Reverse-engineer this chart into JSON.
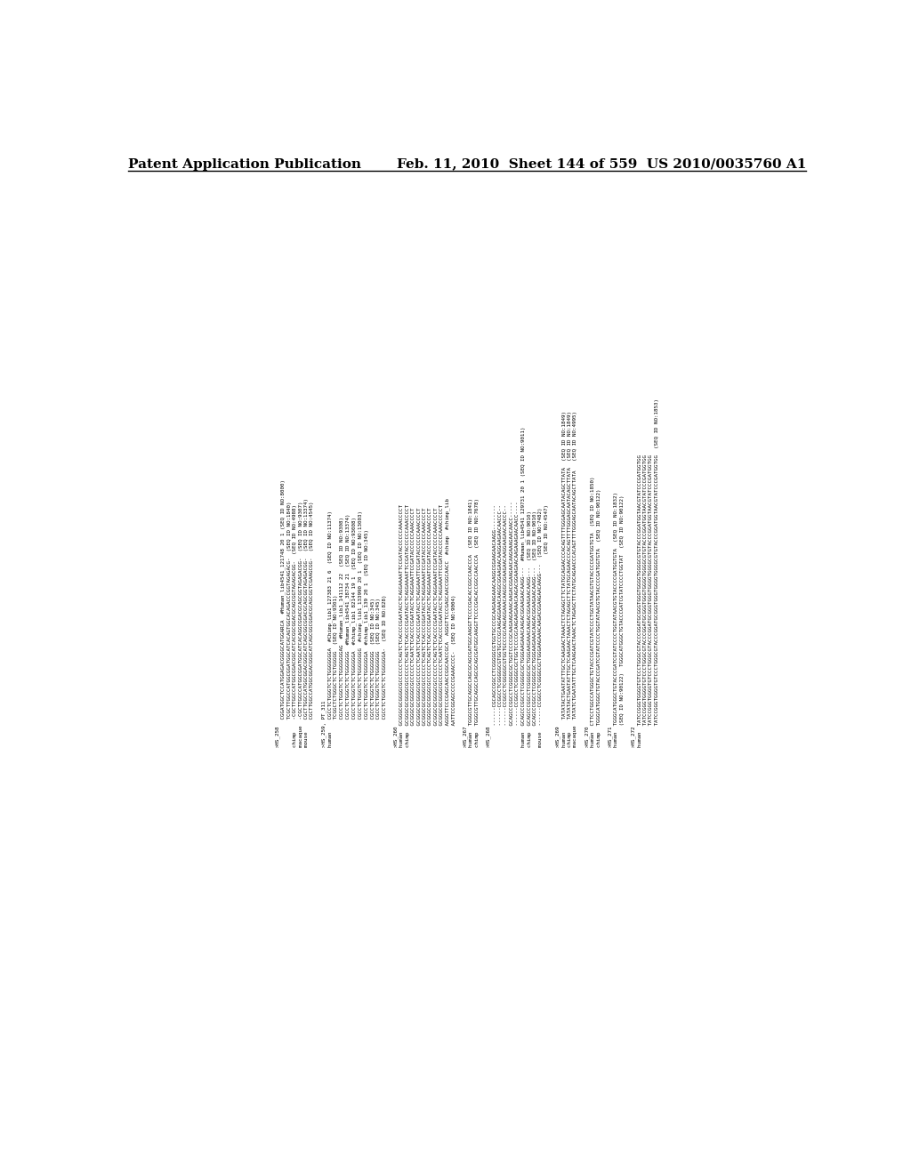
{
  "header_left": "Patent Application Publication",
  "header_right": "Feb. 11, 2010  Sheet 144 of 559  US 2010/0035760 A1",
  "background_color": "#ffffff",
  "text_color": "#000000",
  "header_font_size": 11,
  "body_font_size": 4.2,
  "content": [
    ">HS_258",
    "         CGGATGGCTCCATGGAGACGGGGCATGGARCA  #Human_lib4541_121748 20 1 (SEQ ID NO:8000)",
    "         TCGCTTGGCCATGGCGGATGGCATCACAGTGGCACAGACCCGGTAGAGACG-  (SEQ ID NO:1840)",
    "chimp    -CGCTTGGCCATGGCGGACGGCATCACGGCGGACGCAGCGGTAGAGACGG-  (SEQ ID NO:4988)",
    "macaque  -CGCTTGGCCATGGCGGATGGCATCACAGGCGGACGCAGCGGTAGAGACGG-  (SEQ ID NO:9307)",
    "mouse    CGCTTGGCCATGGCGGACGGGCATCAGCGGCGGACGCAGCGGTAGAGACGG-  (SEQ ID NO:13374)",
    "         CGCTTGGCCATGGCGGACGGGCATCAGCGGCGGACGCAGCGGTCGAAGCGG-  (SEQ ID NO:4545)",
    "",
    ">HS_259, PT_311",
    "human    CGCCTCTGGGTCTCTGGGGGGGA  #Chimp_lib1_127383 21 6  (SEQ ID NO:11374)",
    "         TCGGCTCTGGGCTCTGTGGGGG  (SEQ ID NO:9301)",
    "         CGCCTCTGGGTCTCTGGGGGGGAG  #Human_lib1_141112 22  (SEQ ID NO:9308)",
    "         CGCCTCTGGGTCTCTGGGGGGG  #Human_lib4541_38734 21  (SEQ ID NO:13374)",
    "         CGCCTCTGGGTCTCTGGGGGGA  #chimp_lib1 82144 19 1  (SEQ ID NO:93008)",
    "         CGCCTCTGGGTCTCTGGGGGGGG  #chimp_lib1_133990 20 1  (SEQ ID NO:13003)",
    "         CGCCTCTGGGTCTCTGGGGGGA  #chimp_lib1_139 20 1  (SEQ ID NO:345)",
    "         CGCCTCTGGGTCTCTGGGGGGG  (SEQ ID NO:345)",
    "         CGCCTCTGGGTCTCTGGGGGGG  (SEQ ID NO:345)",
    "         CGCCTCTGGGTCTCTGGGGGGA-  (SEQ ID NO:828)",
    "",
    ">HS_260",
    "human  GCGGGCGCGGGGCGCCCCCCTCAGTCTCACCCCGAATACCTCAGGAAAATTCCGATACCCCCCAAACCCCT",
    "chimp  GCGGGCGCGGGGCGCCCCCCTCAGTCTCACCCCGAATACCTCAGGAAAATTCCGATACCCCCCAAACCCCT",
    "       GCGGGCGCGGGGCGCCCCCCTCAATCTCACCCCGAATACCTCAGGAAATTCCGATACCCCCCAAACCCCT",
    "       GCGGGCGCGGGGCGCCCCCCTCAATCTCACCCCGAATACCTCAGGAAATTCCGATACCCCCCAAACCCCT",
    "       GCGGGCGCGGGGCGCCCCCCTCAGTCTCACCCCGGATACCTCAGGAAAATCCGATACCCCCCAAACCCCT",
    "       GCGGGCGCGGGGCGCCCCCCTCAGTCTCACCCCGAATACCTCAGGAAAATCCGATACCCCCCAAACCCCT",
    "       GCGGGCGCGGGGCGCCCCCCTCAGTCTCACCCCGAATACCTCAGGAAAATCCGATACCCCCCAAACCCCT",
    "       GCGGGCGCGGGGCGCCCCCCTCAATCTCACCCCGAATACCTCAGGAAATTCCGATACCCCCCAAACCCCCT",
    "       AGGGTTCCCGAGCAACCGGCAACCGCA  AGGGTTCCCGAGCAACCGGCAACC  #chimp  #chimp_lib",
    "       AATTCCGGAGCCCCCGAAACCCC-  (SEQ ID NO:9004)",
    "",
    ">HS_267",
    "human  TGGGCGTTGCAGGCCAGCGCAGCGATGGCAAGGTTCCCCGACACCGGCCAACCCA  (SEQ ID NO:1841)",
    "chimp  TGGGCGTTGCAGGCCAGCGCAGCGATGGCAAGGTTCCCCGACACCGGCCAACCCA  (SEQ ID NO:7678)",
    "",
    ">HS_268",
    "       ------CGCAGCCGGCCTCGGGGGCGTGGTGCCCGCAAGAAGAAACAAGGCGGAAGAACAAGG--------",
    "       ------CCGGCCTCGGGGGCGTGGTGCCCGCAAGAGGAAACAAGGCGGAAGAACAAGGAAGAACAACCC--",
    "       ------CCGGCCTCGGGGGCGTGGTGCCCGCAAGAGGAAACAAGGCGGAAGAACAAGGAAGAACAACCC--",
    "       GCAGCCCGGCCTCGGGGCGCTGGTCCCCGCAAGAAGAAACAAGACGGAAGAACAAGAAAGAACAACC-----",
    "       ------CCGGCCTCGGGGCGCTGGTCCCCGCAAGAAGAAACAAGACGGAAGAACAAGAAAGAACAACC----",
    "human  GCAGCCCGGCCTCGGGGCGCTGGGAAGAAACAAGACGGAAGAACAAGG---  #Human_lib4541 129731 20 1 (SEQ ID NO:9011)",
    "chimp  GCAGCCCGGCCTCGGGGCGCTGGGAAGAAACAAGACGGAAGAACAAGG---  (SEQ ID NO:9010)",
    "       GCAGCCCGGCCTCGGGGCGCTGGGAAGAAACAAGACGGAAGAACAAGG---  (SEQ ID NO:9010)",
    "mouse  ------CCGGCCTCGGGGCGCTGGGAAGAAACAAGACGGAAGAACAAGG---  (SEQ ID NO:7482)",
    "                                                              (SEQ ID NO:4547)",
    "",
    ">HS_269",
    "human    TATATACTGAATATTTGCTCAAGAACTAAACTCTAGAGCTTCTATGCAGAACCCACAGTTTTGGGAGCAATACAGCTTATA  (SEQ ID NO:1849)",
    "chimp    TATATACTGAATATTTGCTCAAGAACTAAACTCTAGAGCTTCTATGCAGAACCCACAGTTTTGGGAGCAATACAGCTTATA  (SEQ ID NO:1849)",
    "macaque  TATATCTGAATATTTGCTCAAGAACTAAACTCTAGAGCTTCTATGCAGAACCCACAGTTTTGGGAGCAATACAGCTTATA   (SEQ ID NO:4995)",
    "",
    ">HS_270",
    "human  CTTCCTGGCCATGGGCTGTACCCGATCGTATCCCCTGGTATAACGTGTACCCCGATGGTGTA  (SEQ ID NO:1850)",
    "chimp  TGGGCATGGGCTGTACCCGATCGTATCCCCTGGTATAACGTGTACCCCGATGGTGTA  (SEQ ID NO:90122)",
    "",
    ">HS_271",
    "human  TGGGCATGGGCTGTACCCGATCGTATCCCCTGGTATAACGTGTACCCCGATGGTGTA  (SEQ ID NO:1832)",
    "       (SEQ ID NO:90122)  TGGGCATGGGCTGTACCCGATCGTATCCCCTGGTAT  (SEQ ID NO:90122)",
    "",
    ">HS_272",
    "human  TATCCGGGTGGGGTGTCCCTGGGCGTACCCGGATGCGGGTGGGTGGGGTGGGGCGTGTACCCGGATGGTAACGTATCCCGATGGTGG",
    "       TATCCGGGTGGGGTGTCCCTGGGCGTACCCGGATGCGGGTGGGTGGGGTGGGGCGTGTACCCGGATGGTAACGTATCCCGATGGTGG",
    "       TATCCGGGTGGGGTGTCCCTGGGCGTACCCGGATGCGGGTGGGTGGGGTGGGGCGTGTACCCGGATGGTAACGTATCCCGATGGTGG",
    "       TATCCGGGTGGGGTGTCCCTGGGCGTACCCGGATGCGGGTGGGTGGGGTGGGGCGTGTACCCGGATGGTAACGTATCCCGATGGTGG  (SEQ ID NO:1853)"
  ]
}
